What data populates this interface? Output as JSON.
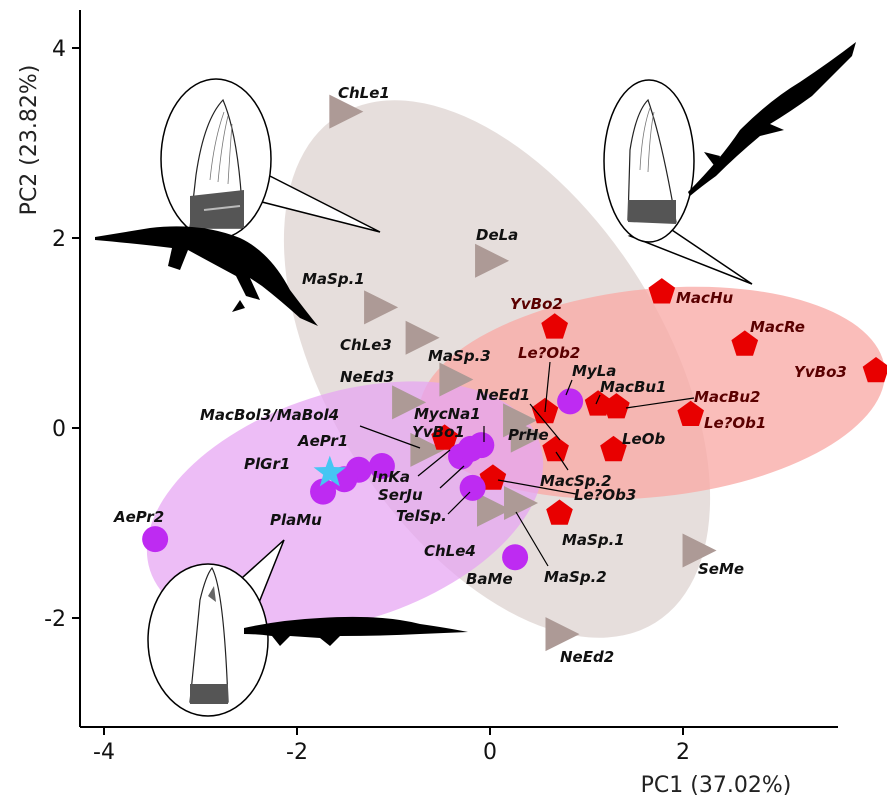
{
  "chart_data": {
    "type": "scatter",
    "xlabel": "PC1 (37.02%)",
    "ylabel": "PC2 (23.82%)",
    "xlim": [
      -4.3,
      3.7
    ],
    "ylim": [
      -3.2,
      4.5
    ],
    "xticks": [
      -4,
      -2,
      0,
      2
    ],
    "yticks": [
      -2,
      0,
      2,
      4
    ],
    "grid": false,
    "colors": {
      "triangle": "#ad9a96",
      "pentagon": "#e80000",
      "circle": "#be2bf2",
      "star": "#45c6f3",
      "ellipse_gray": "#ddd1cf",
      "ellipse_red": "#f9aba7",
      "ellipse_purple": "#e6a4f3",
      "label_dark": "#111111",
      "label_red": "#5a0000"
    },
    "series": [
      {
        "marker": "triangle",
        "points": [
          {
            "label": "ChLe1",
            "x": -1.53,
            "y": 3.33
          },
          {
            "label": "DeLa",
            "x": -0.02,
            "y": 1.76
          },
          {
            "label": "MaSp.1",
            "x": -1.17,
            "y": 1.27
          },
          {
            "label": "ChLe3",
            "x": -0.74,
            "y": 0.95
          },
          {
            "label": "MaSp.3",
            "x": -0.39,
            "y": 0.51
          },
          {
            "label": "NeEd3",
            "x": -0.88,
            "y": 0.27
          },
          {
            "label": "NeEd1",
            "x": 0.27,
            "y": 0.08
          },
          {
            "label": "PrHe",
            "x": 0.35,
            "y": -0.08
          },
          {
            "label": "MacBol3/MaBol4",
            "x": -0.69,
            "y": -0.23
          },
          {
            "label": "ChLe4",
            "x": 0.0,
            "y": -0.86
          },
          {
            "label": "MaSp.2",
            "x": 0.28,
            "y": -0.79
          },
          {
            "label": "SeMe",
            "x": 2.13,
            "y": -1.29
          },
          {
            "label": "NeEd2",
            "x": 0.71,
            "y": -2.17
          }
        ]
      },
      {
        "marker": "pentagon",
        "points": [
          {
            "label": "MacHu",
            "x": 1.78,
            "y": 1.43
          },
          {
            "label": "MacRe",
            "x": 2.64,
            "y": 0.88
          },
          {
            "label": "YvBo3",
            "x": 4.0,
            "y": 0.6
          },
          {
            "label": "YvBo2",
            "x": 0.67,
            "y": 1.06
          },
          {
            "label": "Le?Ob2",
            "x": 0.57,
            "y": 0.17
          },
          {
            "label": "MacBu1",
            "x": 1.12,
            "y": 0.25
          },
          {
            "label": "MacBu2",
            "x": 1.31,
            "y": 0.22
          },
          {
            "label": "Le?Ob1",
            "x": 2.08,
            "y": 0.14
          },
          {
            "label": "LeOb",
            "x": 1.28,
            "y": -0.23
          },
          {
            "label": "MacSp.2",
            "x": 0.68,
            "y": -0.23
          },
          {
            "label": "Le?Ob3",
            "x": 0.03,
            "y": -0.53
          },
          {
            "label": "MaSp.1",
            "x": 0.72,
            "y": -0.9
          },
          {
            "label": "",
            "x": -0.47,
            "y": -0.11
          }
        ]
      },
      {
        "marker": "circle",
        "points": [
          {
            "label": "MyLa",
            "x": 0.83,
            "y": 0.28
          },
          {
            "label": "MycNa1",
            "x": -0.09,
            "y": -0.18
          },
          {
            "label": "YvBo1",
            "x": -0.3,
            "y": -0.3
          },
          {
            "label": "SerJu",
            "x": -0.2,
            "y": -0.22
          },
          {
            "label": "InKa",
            "x": -1.12,
            "y": -0.4
          },
          {
            "label": "AePr1",
            "x": -1.36,
            "y": -0.44
          },
          {
            "label": "PlGr1",
            "x": -1.51,
            "y": -0.54
          },
          {
            "label": "PlaMu",
            "x": -1.73,
            "y": -0.67
          },
          {
            "label": "TelSp.",
            "x": -0.18,
            "y": -0.63
          },
          {
            "label": "BaMe",
            "x": 0.26,
            "y": -1.36
          },
          {
            "label": "AePr2",
            "x": -3.47,
            "y": -1.17
          }
        ]
      },
      {
        "marker": "star",
        "points": [
          {
            "label": "",
            "x": -1.66,
            "y": -0.47
          }
        ]
      }
    ]
  }
}
